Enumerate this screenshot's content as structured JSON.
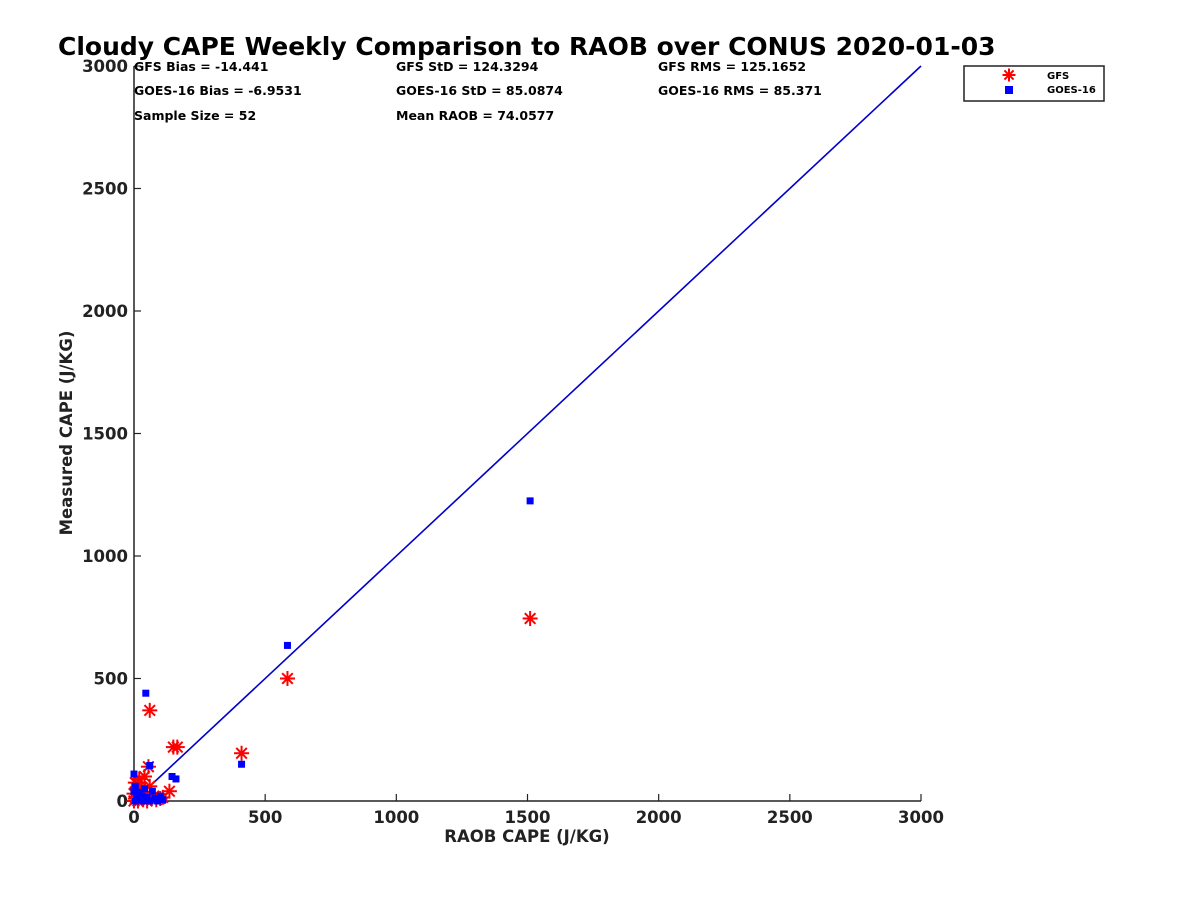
{
  "chart_data": {
    "type": "scatter",
    "title": "Cloudy CAPE Weekly Comparison to RAOB over CONUS 2020-01-03",
    "xlabel": "RAOB CAPE (J/KG)",
    "ylabel": "Measured CAPE (J/KG)",
    "xlim": [
      0,
      3000
    ],
    "ylim": [
      0,
      3000
    ],
    "xticks": [
      "0",
      "500",
      "1000",
      "1500",
      "2000",
      "2500",
      "3000"
    ],
    "yticks": [
      "0",
      "500",
      "1000",
      "1500",
      "2000",
      "2500",
      "3000"
    ],
    "grid": false,
    "legend_position": "top-right, outside plot",
    "stats": {
      "gfs_bias": "GFS Bias = -14.441",
      "goes_bias": "GOES-16 Bias = -6.9531",
      "sample_size": "Sample Size = 52",
      "gfs_std": "GFS StD = 124.3294",
      "goes_std": "GOES-16 StD = 85.0874",
      "mean_raob": "Mean RAOB = 74.0577",
      "gfs_rms": "GFS RMS = 125.1652",
      "goes_rms": "GOES-16 RMS = 85.371"
    },
    "reference_line": {
      "x": [
        0,
        3000
      ],
      "y": [
        0,
        3000
      ],
      "color": "#0000cc"
    },
    "series": [
      {
        "name": "GFS",
        "marker": "asterisk",
        "color": "#ff0000",
        "points": [
          [
            1510,
            745
          ],
          [
            585,
            500
          ],
          [
            410,
            195
          ],
          [
            60,
            370
          ],
          [
            150,
            220
          ],
          [
            165,
            220
          ],
          [
            55,
            140
          ],
          [
            40,
            100
          ],
          [
            5,
            75
          ],
          [
            20,
            90
          ],
          [
            10,
            50
          ],
          [
            30,
            55
          ],
          [
            60,
            60
          ],
          [
            135,
            40
          ],
          [
            25,
            20
          ],
          [
            45,
            25
          ],
          [
            75,
            20
          ],
          [
            100,
            10
          ],
          [
            110,
            15
          ],
          [
            85,
            5
          ],
          [
            0,
            0
          ],
          [
            5,
            10
          ],
          [
            15,
            0
          ],
          [
            35,
            5
          ],
          [
            50,
            0
          ],
          [
            65,
            10
          ],
          [
            0,
            30
          ],
          [
            20,
            30
          ]
        ]
      },
      {
        "name": "GOES-16",
        "marker": "square",
        "color": "#0000ff",
        "points": [
          [
            1510,
            1225
          ],
          [
            585,
            635
          ],
          [
            410,
            150
          ],
          [
            45,
            440
          ],
          [
            60,
            145
          ],
          [
            145,
            100
          ],
          [
            160,
            90
          ],
          [
            0,
            110
          ],
          [
            5,
            60
          ],
          [
            40,
            50
          ],
          [
            70,
            40
          ],
          [
            20,
            35
          ],
          [
            10,
            20
          ],
          [
            30,
            20
          ],
          [
            50,
            15
          ],
          [
            80,
            10
          ],
          [
            100,
            20
          ],
          [
            110,
            5
          ],
          [
            5,
            0
          ],
          [
            20,
            5
          ],
          [
            60,
            0
          ],
          [
            90,
            0
          ],
          [
            0,
            40
          ],
          [
            35,
            0
          ]
        ]
      }
    ]
  }
}
